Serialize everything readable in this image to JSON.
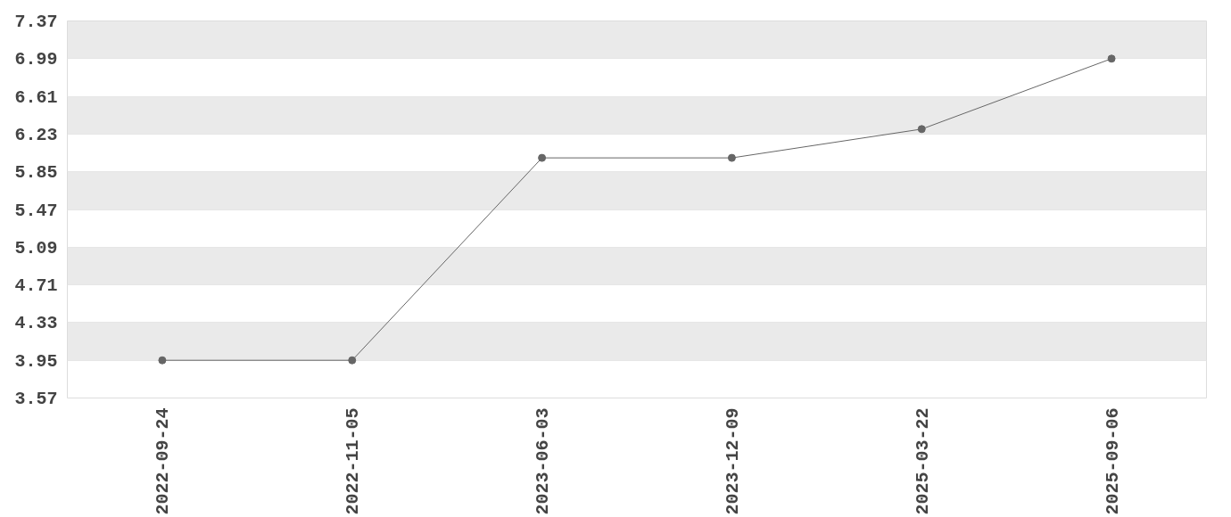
{
  "chart_data": {
    "type": "line",
    "categories": [
      "2022-09-24",
      "2022-11-05",
      "2023-06-03",
      "2023-12-09",
      "2025-03-22",
      "2025-09-06"
    ],
    "series": [
      {
        "color": "#666666",
        "values": [
          3.95,
          3.95,
          5.99,
          5.99,
          6.28,
          6.99
        ]
      }
    ],
    "ylim": [
      3.57,
      7.37
    ],
    "yticks": [
      3.57,
      3.95,
      4.33,
      4.71,
      5.09,
      5.47,
      5.85,
      6.23,
      6.61,
      6.99,
      7.37
    ],
    "grid": "y",
    "marker": "circle",
    "line_style": "solid"
  }
}
